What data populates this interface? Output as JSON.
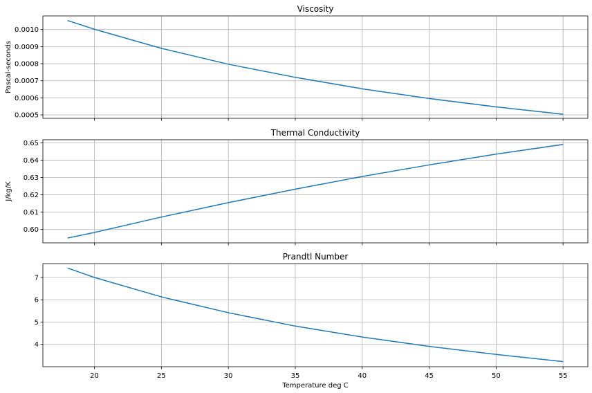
{
  "chart_data": [
    {
      "type": "line",
      "title": "Viscosity",
      "xlabel": "",
      "ylabel": "Pascal-seconds",
      "xlim": [
        16.15,
        56.85
      ],
      "ylim": [
        0.00048,
        0.00108
      ],
      "xticks": [
        20,
        25,
        30,
        35,
        40,
        45,
        50,
        55
      ],
      "show_xtick_labels": false,
      "yticks": [
        0.0005,
        0.0006,
        0.0007,
        0.0008,
        0.0009,
        0.001
      ],
      "ytick_labels": [
        "0.0005",
        "0.0006",
        "0.0007",
        "0.0008",
        "0.0009",
        "0.0010"
      ],
      "grid": true,
      "color": "#1f77b4",
      "x": [
        18,
        20,
        25,
        30,
        35,
        40,
        45,
        50,
        55
      ],
      "y": [
        0.001053,
        0.001002,
        0.00089,
        0.000797,
        0.00072,
        0.000653,
        0.000596,
        0.000547,
        0.000504
      ]
    },
    {
      "type": "line",
      "title": "Thermal Conductivity",
      "xlabel": "",
      "ylabel": "J/kg/K",
      "xlim": [
        16.15,
        56.85
      ],
      "ylim": [
        0.5923,
        0.6518
      ],
      "xticks": [
        20,
        25,
        30,
        35,
        40,
        45,
        50,
        55
      ],
      "show_xtick_labels": false,
      "yticks": [
        0.6,
        0.61,
        0.62,
        0.63,
        0.64,
        0.65
      ],
      "ytick_labels": [
        "0.60",
        "0.61",
        "0.62",
        "0.63",
        "0.64",
        "0.65"
      ],
      "grid": true,
      "color": "#1f77b4",
      "x": [
        18,
        20,
        25,
        30,
        35,
        40,
        45,
        50,
        55
      ],
      "y": [
        0.5951,
        0.5983,
        0.6072,
        0.6155,
        0.6233,
        0.6306,
        0.6373,
        0.6435,
        0.6491
      ]
    },
    {
      "type": "line",
      "title": "Prandtl Number",
      "xlabel": "Temperature deg C",
      "ylabel": "",
      "xlim": [
        16.15,
        56.85
      ],
      "ylim": [
        3.0,
        7.62
      ],
      "xticks": [
        20,
        25,
        30,
        35,
        40,
        45,
        50,
        55
      ],
      "show_xtick_labels": true,
      "xtick_labels": [
        "20",
        "25",
        "30",
        "35",
        "40",
        "45",
        "50",
        "55"
      ],
      "yticks": [
        4,
        5,
        6,
        7
      ],
      "ytick_labels": [
        "4",
        "5",
        "6",
        "7"
      ],
      "grid": true,
      "color": "#1f77b4",
      "x": [
        18,
        20,
        25,
        30,
        35,
        40,
        45,
        50,
        55
      ],
      "y": [
        7.42,
        7.0,
        6.13,
        5.42,
        4.82,
        4.33,
        3.91,
        3.55,
        3.23
      ]
    }
  ]
}
